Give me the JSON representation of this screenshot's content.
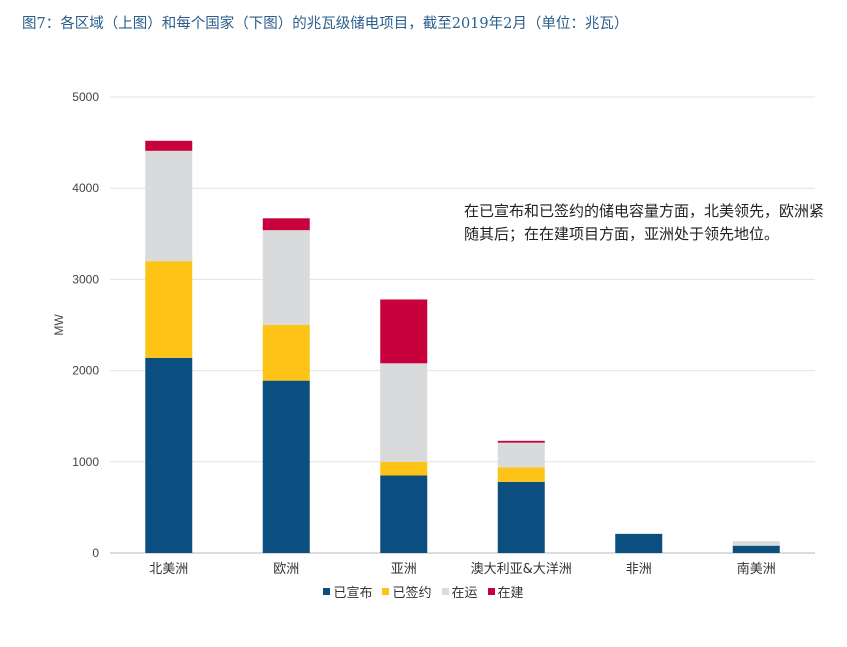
{
  "title": "图7：各区域（上图）和每个国家（下图）的兆瓦级储电项目，截至2019年2月（单位：兆瓦）",
  "annotation": "在已宣布和已签约的储电容量方面，北美领先，欧洲紧随其后；在在建项目方面，亚洲处于领先地位。",
  "chart_data": {
    "type": "bar",
    "stacked": true,
    "categories": [
      "北美洲",
      "欧洲",
      "亚洲",
      "澳大利亚&大洋洲",
      "非洲",
      "南美洲"
    ],
    "series": [
      {
        "name": "已宣布",
        "color": "#0b4f80",
        "values": [
          2140,
          1890,
          850,
          780,
          210,
          80
        ]
      },
      {
        "name": "已签约",
        "color": "#fdc316",
        "values": [
          1060,
          610,
          150,
          160,
          0,
          0
        ]
      },
      {
        "name": "在运",
        "color": "#d9dadb",
        "values": [
          1210,
          1040,
          1080,
          270,
          0,
          50
        ]
      },
      {
        "name": "在建",
        "color": "#c8003c",
        "values": [
          110,
          130,
          700,
          20,
          0,
          0
        ]
      }
    ],
    "ylabel": "MW",
    "ylim": [
      0,
      5000
    ],
    "yticks": [
      0,
      1000,
      2000,
      3000,
      4000,
      5000
    ],
    "grid": true,
    "legend_position": "bottom"
  }
}
